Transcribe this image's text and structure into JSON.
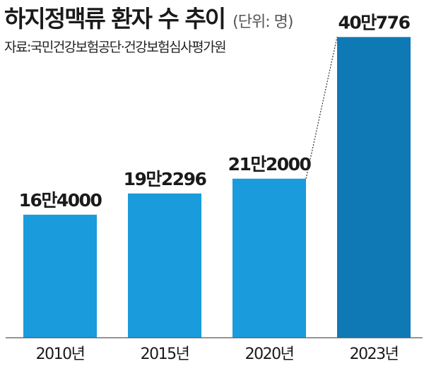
{
  "header": {
    "title": "하지정맥류 환자 수 추이",
    "unit": "(단위: 명)",
    "source": "자료:국민건강보험공단·건강보험심사평가원"
  },
  "chart_data": {
    "type": "bar",
    "categories": [
      "2010년",
      "2015년",
      "2020년",
      "2023년"
    ],
    "values": [
      164000,
      192296,
      212000,
      400776
    ],
    "data_labels": [
      "16만4000",
      "19만2296",
      "21만2000",
      "40만776"
    ],
    "colors": [
      "#1a9bdc",
      "#1a9bdc",
      "#1a9bdc",
      "#0f79b5"
    ],
    "title": "하지정맥류 환자 수 추이",
    "unit": "명",
    "ylim": [
      0,
      420000
    ],
    "grid": false,
    "legend": "none"
  }
}
